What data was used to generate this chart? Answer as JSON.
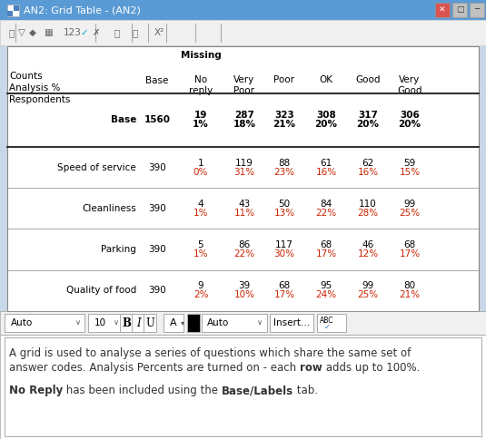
{
  "title": "AN2: Grid Table - (AN2)",
  "missing_label": "Missing",
  "col_headers": [
    "No\nreply",
    "Very\nPoor",
    "Poor",
    "OK",
    "Good",
    "Very\nGood"
  ],
  "rows": [
    {
      "label": "Base",
      "base": "1560",
      "data": [
        [
          "19",
          "1%"
        ],
        [
          "287",
          "18%"
        ],
        [
          "323",
          "21%"
        ],
        [
          "308",
          "20%"
        ],
        [
          "317",
          "20%"
        ],
        [
          "306",
          "20%"
        ]
      ]
    },
    {
      "label": "Speed of service",
      "base": "390",
      "data": [
        [
          "1",
          "0%"
        ],
        [
          "119",
          "31%"
        ],
        [
          "88",
          "23%"
        ],
        [
          "61",
          "16%"
        ],
        [
          "62",
          "16%"
        ],
        [
          "59",
          "15%"
        ]
      ]
    },
    {
      "label": "Cleanliness",
      "base": "390",
      "data": [
        [
          "4",
          "1%"
        ],
        [
          "43",
          "11%"
        ],
        [
          "50",
          "13%"
        ],
        [
          "84",
          "22%"
        ],
        [
          "110",
          "28%"
        ],
        [
          "99",
          "25%"
        ]
      ]
    },
    {
      "label": "Parking",
      "base": "390",
      "data": [
        [
          "5",
          "1%"
        ],
        [
          "86",
          "22%"
        ],
        [
          "117",
          "30%"
        ],
        [
          "68",
          "17%"
        ],
        [
          "46",
          "12%"
        ],
        [
          "68",
          "17%"
        ]
      ]
    },
    {
      "label": "Quality of food",
      "base": "390",
      "data": [
        [
          "9",
          "2%"
        ],
        [
          "39",
          "10%"
        ],
        [
          "68",
          "17%"
        ],
        [
          "95",
          "24%"
        ],
        [
          "99",
          "25%"
        ],
        [
          "80",
          "21%"
        ]
      ]
    }
  ],
  "note_text": [
    [
      "A grid is used to analyse a series of questions which share the same set of",
      false
    ],
    [
      "answer codes. Analysis Percents are turned on - each ",
      false
    ],
    [
      "row",
      true
    ],
    [
      " adds up to 100%.",
      false
    ]
  ],
  "note_text2": [
    [
      "No Reply",
      true
    ],
    [
      " has been included using the ",
      false
    ],
    [
      "Base/Labels",
      true
    ],
    [
      " tab.",
      false
    ]
  ],
  "titlebar_bg": "#5b9bd5",
  "titlebar_text": "#ffffff",
  "window_bg": "#c8d8e8",
  "toolbar_bg": "#f0f0f0",
  "table_bg": "#ffffff",
  "table_border": "#888888",
  "header_sep_color": "#333333",
  "count_color": "#000000",
  "pct_color": "#cc2200",
  "base_row_count_color": "#000000",
  "note_area_bg": "#ffffff",
  "data_font_size": 7.5,
  "header_font_size": 7.5,
  "note_font_size": 8.5
}
